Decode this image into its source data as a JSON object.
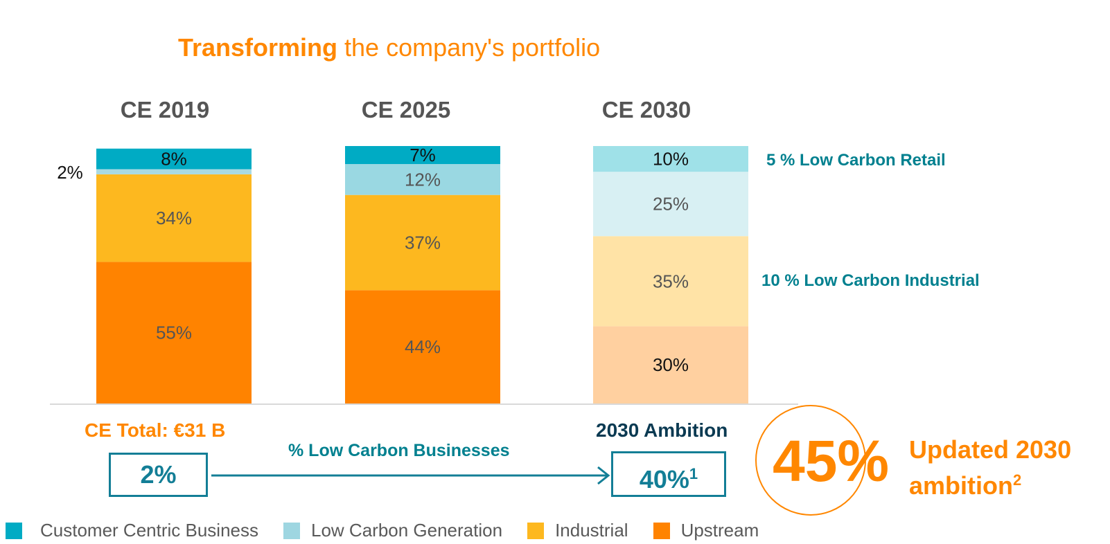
{
  "title": {
    "bold": "Transforming",
    "rest": " the company's portfolio"
  },
  "chart_data": {
    "type": "bar",
    "stacked": true,
    "categories": [
      "CE 2019",
      "CE 2025",
      "CE 2030"
    ],
    "series": [
      {
        "name": "Upstream",
        "values": [
          55,
          44,
          30
        ],
        "labels": [
          "55%",
          "44%",
          "30%"
        ]
      },
      {
        "name": "Industrial",
        "values": [
          34,
          37,
          35
        ],
        "labels": [
          "34%",
          "37%",
          "35%"
        ]
      },
      {
        "name": "Low Carbon Generation",
        "values": [
          2,
          12,
          25
        ],
        "labels": [
          "2%",
          "12%",
          "25%"
        ]
      },
      {
        "name": "Customer Centric Business",
        "values": [
          8,
          7,
          10
        ],
        "labels": [
          "8%",
          "7%",
          "10%"
        ]
      }
    ],
    "ylim": [
      0,
      100
    ],
    "legend_position": "bottom",
    "colors": {
      "Upstream": [
        "#ff8300",
        "#ff8300",
        "#ffd0a0"
      ],
      "Industrial": [
        "#fdb81f",
        "#fdb81f",
        "#ffe3a6"
      ],
      "Low Carbon Generation": [
        "#a9dae3",
        "#9ad8e2",
        "#d8f0f3"
      ],
      "Customer Centric Business": [
        "#00abc4",
        "#00abc4",
        "#9fe1e8"
      ]
    }
  },
  "side_labels": {
    "retail": "5 % Low Carbon Retail",
    "industrial": "10 % Low Carbon Industrial"
  },
  "summary": {
    "ce_total": "CE Total: €31 B",
    "ambition_label": "2030 Ambition",
    "start_value": "2%",
    "arrow_label": "% Low Carbon Businesses",
    "end_value": "40%",
    "end_footnote": "1",
    "big_value": "45%",
    "updated_line1": "Updated 2030",
    "updated_line2": "ambition",
    "updated_footnote": "2"
  },
  "legend": [
    {
      "label": "Customer Centric Business",
      "color": "#00abc4"
    },
    {
      "label": "Low Carbon Generation",
      "color": "#9ed6e1"
    },
    {
      "label": "Industrial",
      "color": "#fdb81f"
    },
    {
      "label": "Upstream",
      "color": "#ff8300"
    }
  ]
}
